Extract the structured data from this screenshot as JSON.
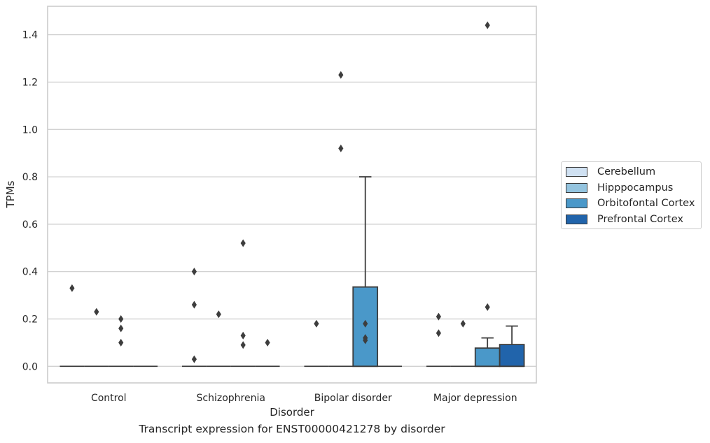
{
  "chart_data": {
    "type": "box",
    "xlabel": "Disorder",
    "ylabel": "TPMs",
    "caption": "Transcript expression for ENST00000421278 by disorder",
    "categories": [
      "Control",
      "Schizophrenia",
      "Bipolar disorder",
      "Major depression"
    ],
    "ylim": [
      -0.07,
      1.52
    ],
    "yticks": [
      0.0,
      0.2,
      0.4,
      0.6,
      0.8,
      1.0,
      1.2,
      1.4
    ],
    "ytick_labels": [
      "0.0",
      "0.2",
      "0.4",
      "0.6",
      "0.8",
      "1.0",
      "1.2",
      "1.4"
    ],
    "grid": "horizontal",
    "legend_position": "right",
    "series": [
      {
        "name": "Cerebellum",
        "color": "#d0e1f2",
        "boxes": [
          {
            "q1": 0,
            "median": 0,
            "q3": 0,
            "whisker_low": 0,
            "whisker_high": 0,
            "outliers": [
              0.33
            ]
          },
          {
            "q1": 0,
            "median": 0,
            "q3": 0,
            "whisker_low": 0,
            "whisker_high": 0,
            "outliers": [
              0.4,
              0.26,
              0.03
            ]
          },
          {
            "q1": 0,
            "median": 0,
            "q3": 0,
            "whisker_low": 0,
            "whisker_high": 0,
            "outliers": [
              0.18
            ]
          },
          {
            "q1": 0,
            "median": 0,
            "q3": 0,
            "whisker_low": 0,
            "whisker_high": 0,
            "outliers": [
              0.21,
              0.14
            ]
          }
        ]
      },
      {
        "name": "Hipppocampus",
        "color": "#94c4df",
        "boxes": [
          {
            "q1": 0,
            "median": 0,
            "q3": 0,
            "whisker_low": 0,
            "whisker_high": 0,
            "outliers": [
              0.23
            ]
          },
          {
            "q1": 0,
            "median": 0,
            "q3": 0,
            "whisker_low": 0,
            "whisker_high": 0,
            "outliers": [
              0.22
            ]
          },
          {
            "q1": 0,
            "median": 0,
            "q3": 0,
            "whisker_low": 0,
            "whisker_high": 0,
            "outliers": [
              1.23,
              0.92
            ]
          },
          {
            "q1": 0,
            "median": 0,
            "q3": 0,
            "whisker_low": 0,
            "whisker_high": 0,
            "outliers": [
              0.18
            ]
          }
        ]
      },
      {
        "name": "Orbitofontal Cortex",
        "color": "#4a98c9",
        "boxes": [
          {
            "q1": 0,
            "median": 0,
            "q3": 0,
            "whisker_low": 0,
            "whisker_high": 0,
            "outliers": [
              0.2,
              0.16,
              0.1
            ]
          },
          {
            "q1": 0,
            "median": 0,
            "q3": 0,
            "whisker_low": 0,
            "whisker_high": 0,
            "outliers": [
              0.52,
              0.13,
              0.09
            ]
          },
          {
            "q1": 0,
            "median": 0,
            "q3": 0.335,
            "whisker_low": 0,
            "whisker_high": 0.8,
            "outliers": [
              0.18,
              0.12,
              0.11
            ]
          },
          {
            "q1": 0,
            "median": 0,
            "q3": 0.077,
            "whisker_low": 0,
            "whisker_high": 0.12,
            "outliers": [
              0.25,
              1.44
            ]
          }
        ]
      },
      {
        "name": "Prefrontal Cortex",
        "color": "#2164ab",
        "boxes": [
          {
            "q1": 0,
            "median": 0,
            "q3": 0,
            "whisker_low": 0,
            "whisker_high": 0,
            "outliers": []
          },
          {
            "q1": 0,
            "median": 0,
            "q3": 0,
            "whisker_low": 0,
            "whisker_high": 0,
            "outliers": [
              0.1
            ]
          },
          {
            "q1": 0,
            "median": 0,
            "q3": 0,
            "whisker_low": 0,
            "whisker_high": 0,
            "outliers": []
          },
          {
            "q1": 0,
            "median": 0,
            "q3": 0.092,
            "whisker_low": 0,
            "whisker_high": 0.17,
            "outliers": []
          }
        ]
      }
    ]
  }
}
